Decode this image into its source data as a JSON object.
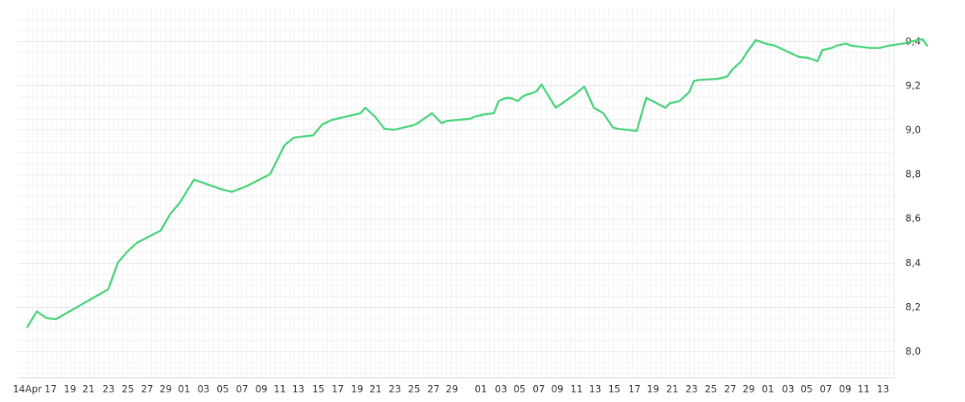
{
  "chart_data": {
    "type": "line",
    "title": "",
    "xlabel": "",
    "ylabel": "",
    "x_tick_labels": [
      "14Apr",
      "17",
      "19",
      "21",
      "23",
      "25",
      "27",
      "29",
      "01",
      "03",
      "05",
      "07",
      "09",
      "11",
      "13",
      "15",
      "17",
      "19",
      "21",
      "23",
      "25",
      "27",
      "29",
      "",
      "01",
      "03",
      "05",
      "07",
      "09",
      "11",
      "13",
      "15",
      "17",
      "19",
      "21",
      "23",
      "25",
      "27",
      "29",
      "01",
      "03",
      "05",
      "07",
      "09",
      "11",
      "13"
    ],
    "y_tick_labels": [
      "8,0",
      "8,2",
      "8,4",
      "8,6",
      "8,8",
      "9,0",
      "9,2",
      "9,4"
    ],
    "y_ticks": [
      8.0,
      8.2,
      8.4,
      8.6,
      8.8,
      9.0,
      9.2,
      9.4
    ],
    "ylim": [
      7.88,
      9.55
    ],
    "grid": true,
    "series": [
      {
        "color": "#4cd47c",
        "x": [
          0,
          2,
          4,
          6,
          17,
          19,
          21,
          23,
          28,
          30,
          32,
          35,
          37,
          39,
          41,
          42,
          43,
          46,
          51,
          54,
          56,
          58,
          60,
          61,
          62,
          63,
          64,
          70,
          71,
          73,
          75,
          77,
          78,
          79,
          81,
          82,
          85,
          87,
          88,
          93,
          94,
          95,
          96,
          98,
          99,
          100,
          101,
          102,
          103,
          104,
          105,
          106,
          107,
          108,
          111,
          113,
          115,
          117,
          119,
          121,
          123,
          124,
          128,
          130,
          134,
          135,
          137,
          139,
          140,
          141,
          145,
          147,
          148,
          150,
          151,
          153,
          155,
          157,
          162,
          164,
          166,
          167,
          169,
          170,
          172,
          173,
          177,
          179,
          181,
          184,
          186,
          187,
          188,
          189
        ],
        "y": [
          8.11,
          8.18,
          8.15,
          8.145,
          8.28,
          8.4,
          8.45,
          8.49,
          8.545,
          8.62,
          8.67,
          8.775,
          8.76,
          8.745,
          8.73,
          8.725,
          8.72,
          8.745,
          8.8,
          8.93,
          8.965,
          8.97,
          8.975,
          9.0,
          9.025,
          9.035,
          9.045,
          9.075,
          9.1,
          9.06,
          9.005,
          9.0,
          9.005,
          9.01,
          9.02,
          9.03,
          9.075,
          9.03,
          9.04,
          9.05,
          9.06,
          9.065,
          9.07,
          9.075,
          9.13,
          9.14,
          9.145,
          9.14,
          9.13,
          9.15,
          9.16,
          9.165,
          9.175,
          9.205,
          9.1,
          9.13,
          9.16,
          9.195,
          9.1,
          9.075,
          9.01,
          9.005,
          8.995,
          9.145,
          9.1,
          9.12,
          9.13,
          9.17,
          9.22,
          9.225,
          9.23,
          9.24,
          9.27,
          9.31,
          9.345,
          9.405,
          9.39,
          9.38,
          9.33,
          9.325,
          9.31,
          9.36,
          9.37,
          9.38,
          9.39,
          9.38,
          9.37,
          9.37,
          9.38,
          9.39,
          9.4,
          9.405,
          9.41,
          9.38
        ]
      }
    ]
  }
}
